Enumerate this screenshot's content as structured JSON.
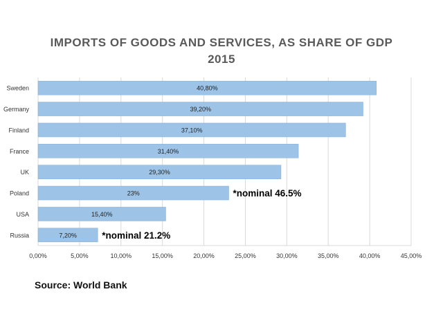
{
  "chart_data": {
    "type": "bar",
    "orientation": "horizontal",
    "title": "IMPORTS OF GOODS AND SERVICES, AS SHARE OF GDP",
    "subtitle": "2015",
    "categories": [
      "Sweden",
      "Germany",
      "Finland",
      "France",
      "UK",
      "Poland",
      "USA",
      "Russia"
    ],
    "values": [
      40.8,
      39.2,
      37.1,
      31.4,
      29.3,
      23,
      15.4,
      7.2
    ],
    "data_labels": [
      "40,80%",
      "39,20%",
      "37,10%",
      "31,40%",
      "29,30%",
      "23%",
      "15,40%",
      "7,20%"
    ],
    "annotations": [
      {
        "category": "Poland",
        "text": "*nominal 46.5%"
      },
      {
        "category": "Russia",
        "text": "*nominal 21.2%"
      }
    ],
    "x_ticks": [
      0,
      5,
      10,
      15,
      20,
      25,
      30,
      35,
      40,
      45
    ],
    "x_tick_labels": [
      "0,00%",
      "5,00%",
      "10,00%",
      "15,00%",
      "20,00%",
      "25,00%",
      "30,00%",
      "35,00%",
      "40,00%",
      "45,00%"
    ],
    "xlim": [
      0,
      45
    ],
    "grid": true,
    "legend": "none",
    "bar_color": "#9DC3E6",
    "bar_border_color": "#7FAEDB",
    "grid_color": "#D9D9D9"
  },
  "source": "Source: World Bank"
}
